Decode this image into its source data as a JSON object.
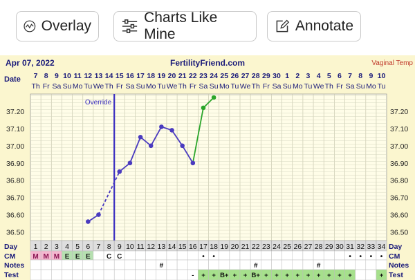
{
  "toolbar": {
    "overlay_label": "Overlay",
    "charts_like_mine_label": "Charts Like Mine",
    "annotate_label": "Annotate"
  },
  "header": {
    "date": "Apr 07, 2022",
    "site": "FertilityFriend.com",
    "temp_type": "Vaginal Temp"
  },
  "rows": {
    "date_label": "Date",
    "day_label": "Day",
    "cm_label": "CM",
    "notes_label": "Notes",
    "test_label": "Test"
  },
  "override_label": "Override",
  "chart_data": {
    "type": "line",
    "dates": [
      "7",
      "8",
      "9",
      "10",
      "11",
      "12",
      "13",
      "14",
      "15",
      "16",
      "17",
      "18",
      "19",
      "20",
      "21",
      "22",
      "23",
      "24",
      "25",
      "26",
      "27",
      "28",
      "29",
      "30",
      "1",
      "2",
      "3",
      "4",
      "5",
      "6",
      "7",
      "8",
      "9",
      "10"
    ],
    "weekdays": [
      "Th",
      "Fr",
      "Sa",
      "Su",
      "Mo",
      "Tu",
      "We",
      "Th",
      "Fr",
      "Sa",
      "Su",
      "Mo",
      "Tu",
      "We",
      "Th",
      "Fr",
      "Sa",
      "Su",
      "Mo",
      "Tu",
      "We",
      "Th",
      "Fr",
      "Sa",
      "Su",
      "Mo",
      "Tu",
      "We",
      "Th",
      "Fr",
      "Sa",
      "Su",
      "Mo",
      "Tu"
    ],
    "cycle_days": [
      "1",
      "2",
      "3",
      "4",
      "5",
      "6",
      "7",
      "8",
      "9",
      "10",
      "11",
      "12",
      "13",
      "14",
      "15",
      "16",
      "17",
      "18",
      "19",
      "20",
      "21",
      "22",
      "23",
      "24",
      "25",
      "26",
      "27",
      "28",
      "29",
      "30",
      "31",
      "32",
      "33",
      "34"
    ],
    "y_ticks": [
      "37.20",
      "37.10",
      "37.00",
      "36.90",
      "36.80",
      "36.70",
      "36.60",
      "36.50"
    ],
    "ylim": [
      36.45,
      37.3
    ],
    "override_day": 8,
    "temps": [
      {
        "day": 6,
        "value": 36.56
      },
      {
        "day": 7,
        "value": 36.6
      },
      {
        "day": 9,
        "value": 36.85
      },
      {
        "day": 10,
        "value": 36.9
      },
      {
        "day": 11,
        "value": 37.05
      },
      {
        "day": 12,
        "value": 37.0
      },
      {
        "day": 13,
        "value": 37.11
      },
      {
        "day": 14,
        "value": 37.09
      },
      {
        "day": 15,
        "value": 37.0
      },
      {
        "day": 16,
        "value": 36.9
      },
      {
        "day": 17,
        "value": 37.22
      },
      {
        "day": 18,
        "value": 37.28
      }
    ],
    "dashed_segments": [
      [
        7,
        9
      ]
    ],
    "green_from_day": 16,
    "series_colors": {
      "main": "#4a3bbf",
      "post": "#2aa52a",
      "override": "#3a2ec0"
    },
    "cm": [
      "M",
      "M",
      "M",
      "E",
      "E",
      "E",
      "",
      "C",
      "C",
      "",
      "",
      "",
      "",
      "",
      "",
      "",
      "•",
      "•",
      "",
      "",
      "",
      "",
      "",
      "",
      "",
      "",
      "",
      "",
      "",
      "",
      "•",
      "•",
      "•",
      "•"
    ],
    "notes": [
      "",
      "",
      "",
      "",
      "",
      "",
      "",
      "",
      "",
      "",
      "",
      "",
      "#",
      "",
      "",
      "",
      "",
      "",
      "",
      "",
      "",
      "#",
      "",
      "",
      "",
      "",
      "",
      "#",
      "",
      "",
      "",
      "",
      "",
      ""
    ],
    "tests": [
      "",
      "",
      "",
      "",
      "",
      "",
      "",
      "",
      "",
      "",
      "",
      "",
      "",
      "",
      "",
      "-",
      "+",
      "+",
      "B+",
      "+",
      "+",
      "B+",
      "+",
      "+",
      "+",
      "+",
      "+",
      "+",
      "+",
      "+",
      "+",
      "",
      "",
      "+"
    ]
  }
}
